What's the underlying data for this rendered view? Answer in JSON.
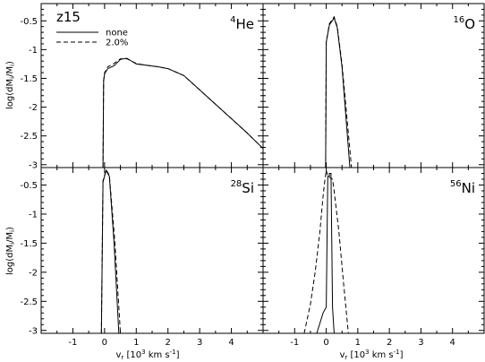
{
  "figure": {
    "model_label": "z15",
    "legend": [
      {
        "label": "none",
        "style": "solid"
      },
      {
        "label": "2.0%",
        "style": "dashed"
      }
    ],
    "x_label": "v_r [10^3 km s^-1]",
    "y_label": "log(dM_i/M_i)"
  },
  "chart_data": [
    {
      "type": "line",
      "title": "4He",
      "title_mass": "4",
      "title_element": "He",
      "xlim": [
        -2.0,
        5.0
      ],
      "ylim": [
        -3.05,
        -0.2
      ],
      "x_ticks": [
        -1,
        0,
        1,
        2,
        3,
        4
      ],
      "y_ticks": [
        -3.0,
        -2.5,
        -2.0,
        -1.5,
        -1.0,
        -0.5
      ],
      "series": [
        {
          "name": "none",
          "style": "solid",
          "x": [
            -0.05,
            -0.03,
            0.0,
            0.1,
            0.3,
            0.5,
            0.7,
            1.0,
            1.3,
            1.7,
            2.0,
            2.5,
            3.0,
            3.5,
            4.0,
            4.5,
            5.0
          ],
          "y": [
            -3.05,
            -1.55,
            -1.42,
            -1.33,
            -1.28,
            -1.17,
            -1.15,
            -1.25,
            -1.27,
            -1.3,
            -1.33,
            -1.45,
            -1.7,
            -1.95,
            -2.2,
            -2.45,
            -2.72
          ]
        },
        {
          "name": "2.0%",
          "style": "dashed",
          "x": [
            -0.05,
            -0.03,
            0.0,
            0.1,
            0.3,
            0.5,
            0.7,
            1.0,
            1.3,
            1.7,
            2.0,
            2.5,
            3.0,
            3.5,
            4.0,
            4.5,
            5.0
          ],
          "y": [
            -3.05,
            -1.53,
            -1.4,
            -1.3,
            -1.24,
            -1.16,
            -1.16,
            -1.24,
            -1.27,
            -1.3,
            -1.33,
            -1.45,
            -1.7,
            -1.95,
            -2.2,
            -2.45,
            -2.72
          ]
        }
      ]
    },
    {
      "type": "line",
      "title": "16O",
      "title_mass": "16",
      "title_element": "O",
      "xlim": [
        -2.0,
        5.0
      ],
      "ylim": [
        -3.05,
        -0.2
      ],
      "x_ticks": [
        -1,
        0,
        1,
        2,
        3,
        4
      ],
      "y_ticks": [
        -3.0,
        -2.5,
        -2.0,
        -1.5,
        -1.0,
        -0.5
      ],
      "series": [
        {
          "name": "none",
          "style": "solid",
          "x": [
            -0.02,
            0.0,
            0.1,
            0.25,
            0.35,
            0.5,
            0.75
          ],
          "y": [
            -3.05,
            -0.87,
            -0.57,
            -0.45,
            -0.62,
            -1.3,
            -3.05
          ]
        },
        {
          "name": "2.0%",
          "style": "dashed",
          "x": [
            -0.02,
            0.0,
            0.1,
            0.25,
            0.35,
            0.5,
            0.8
          ],
          "y": [
            -3.05,
            -0.87,
            -0.55,
            -0.43,
            -0.6,
            -1.25,
            -3.05
          ]
        }
      ]
    },
    {
      "type": "line",
      "title": "28Si",
      "title_mass": "28",
      "title_element": "Si",
      "xlim": [
        -2.0,
        5.0
      ],
      "ylim": [
        -3.05,
        -0.2
      ],
      "x_ticks": [
        -1,
        0,
        1,
        2,
        3,
        4
      ],
      "y_ticks": [
        -3.0,
        -2.5,
        -2.0,
        -1.5,
        -1.0,
        -0.5
      ],
      "series": [
        {
          "name": "none",
          "style": "solid",
          "x": [
            -0.1,
            -0.05,
            0.05,
            0.15,
            0.3,
            0.45
          ],
          "y": [
            -3.05,
            -0.45,
            -0.25,
            -0.35,
            -1.5,
            -3.05
          ]
        },
        {
          "name": "2.0%",
          "style": "dashed",
          "x": [
            -0.1,
            -0.05,
            0.05,
            0.15,
            0.32,
            0.5
          ],
          "y": [
            -3.05,
            -0.43,
            -0.24,
            -0.33,
            -1.45,
            -3.05
          ]
        }
      ]
    },
    {
      "type": "line",
      "title": "56Ni",
      "title_mass": "56",
      "title_element": "Ni",
      "xlim": [
        -2.0,
        5.0
      ],
      "ylim": [
        -3.05,
        -0.2
      ],
      "x_ticks": [
        -1,
        0,
        1,
        2,
        3,
        4
      ],
      "y_ticks": [
        -3.0,
        -2.5,
        -2.0,
        -1.5,
        -1.0,
        -0.5
      ],
      "series": [
        {
          "name": "none",
          "style": "solid",
          "x": [
            -0.3,
            -0.1,
            0.0,
            0.05,
            0.1,
            0.1,
            0.15,
            0.2,
            0.25
          ],
          "y": [
            -3.05,
            -2.7,
            -2.6,
            -0.35,
            -0.35,
            -0.3,
            -0.3,
            -2.6,
            -3.05
          ]
        },
        {
          "name": "2.0%",
          "style": "dashed",
          "x": [
            -0.7,
            -0.5,
            -0.35,
            -0.2,
            -0.1,
            -0.05,
            0.0,
            0.05,
            0.2,
            0.25,
            0.4,
            0.55,
            0.7
          ],
          "y": [
            -3.05,
            -2.55,
            -2.0,
            -1.3,
            -0.7,
            -0.45,
            -0.25,
            -0.35,
            -0.4,
            -0.6,
            -1.3,
            -2.2,
            -3.05
          ]
        }
      ]
    }
  ]
}
